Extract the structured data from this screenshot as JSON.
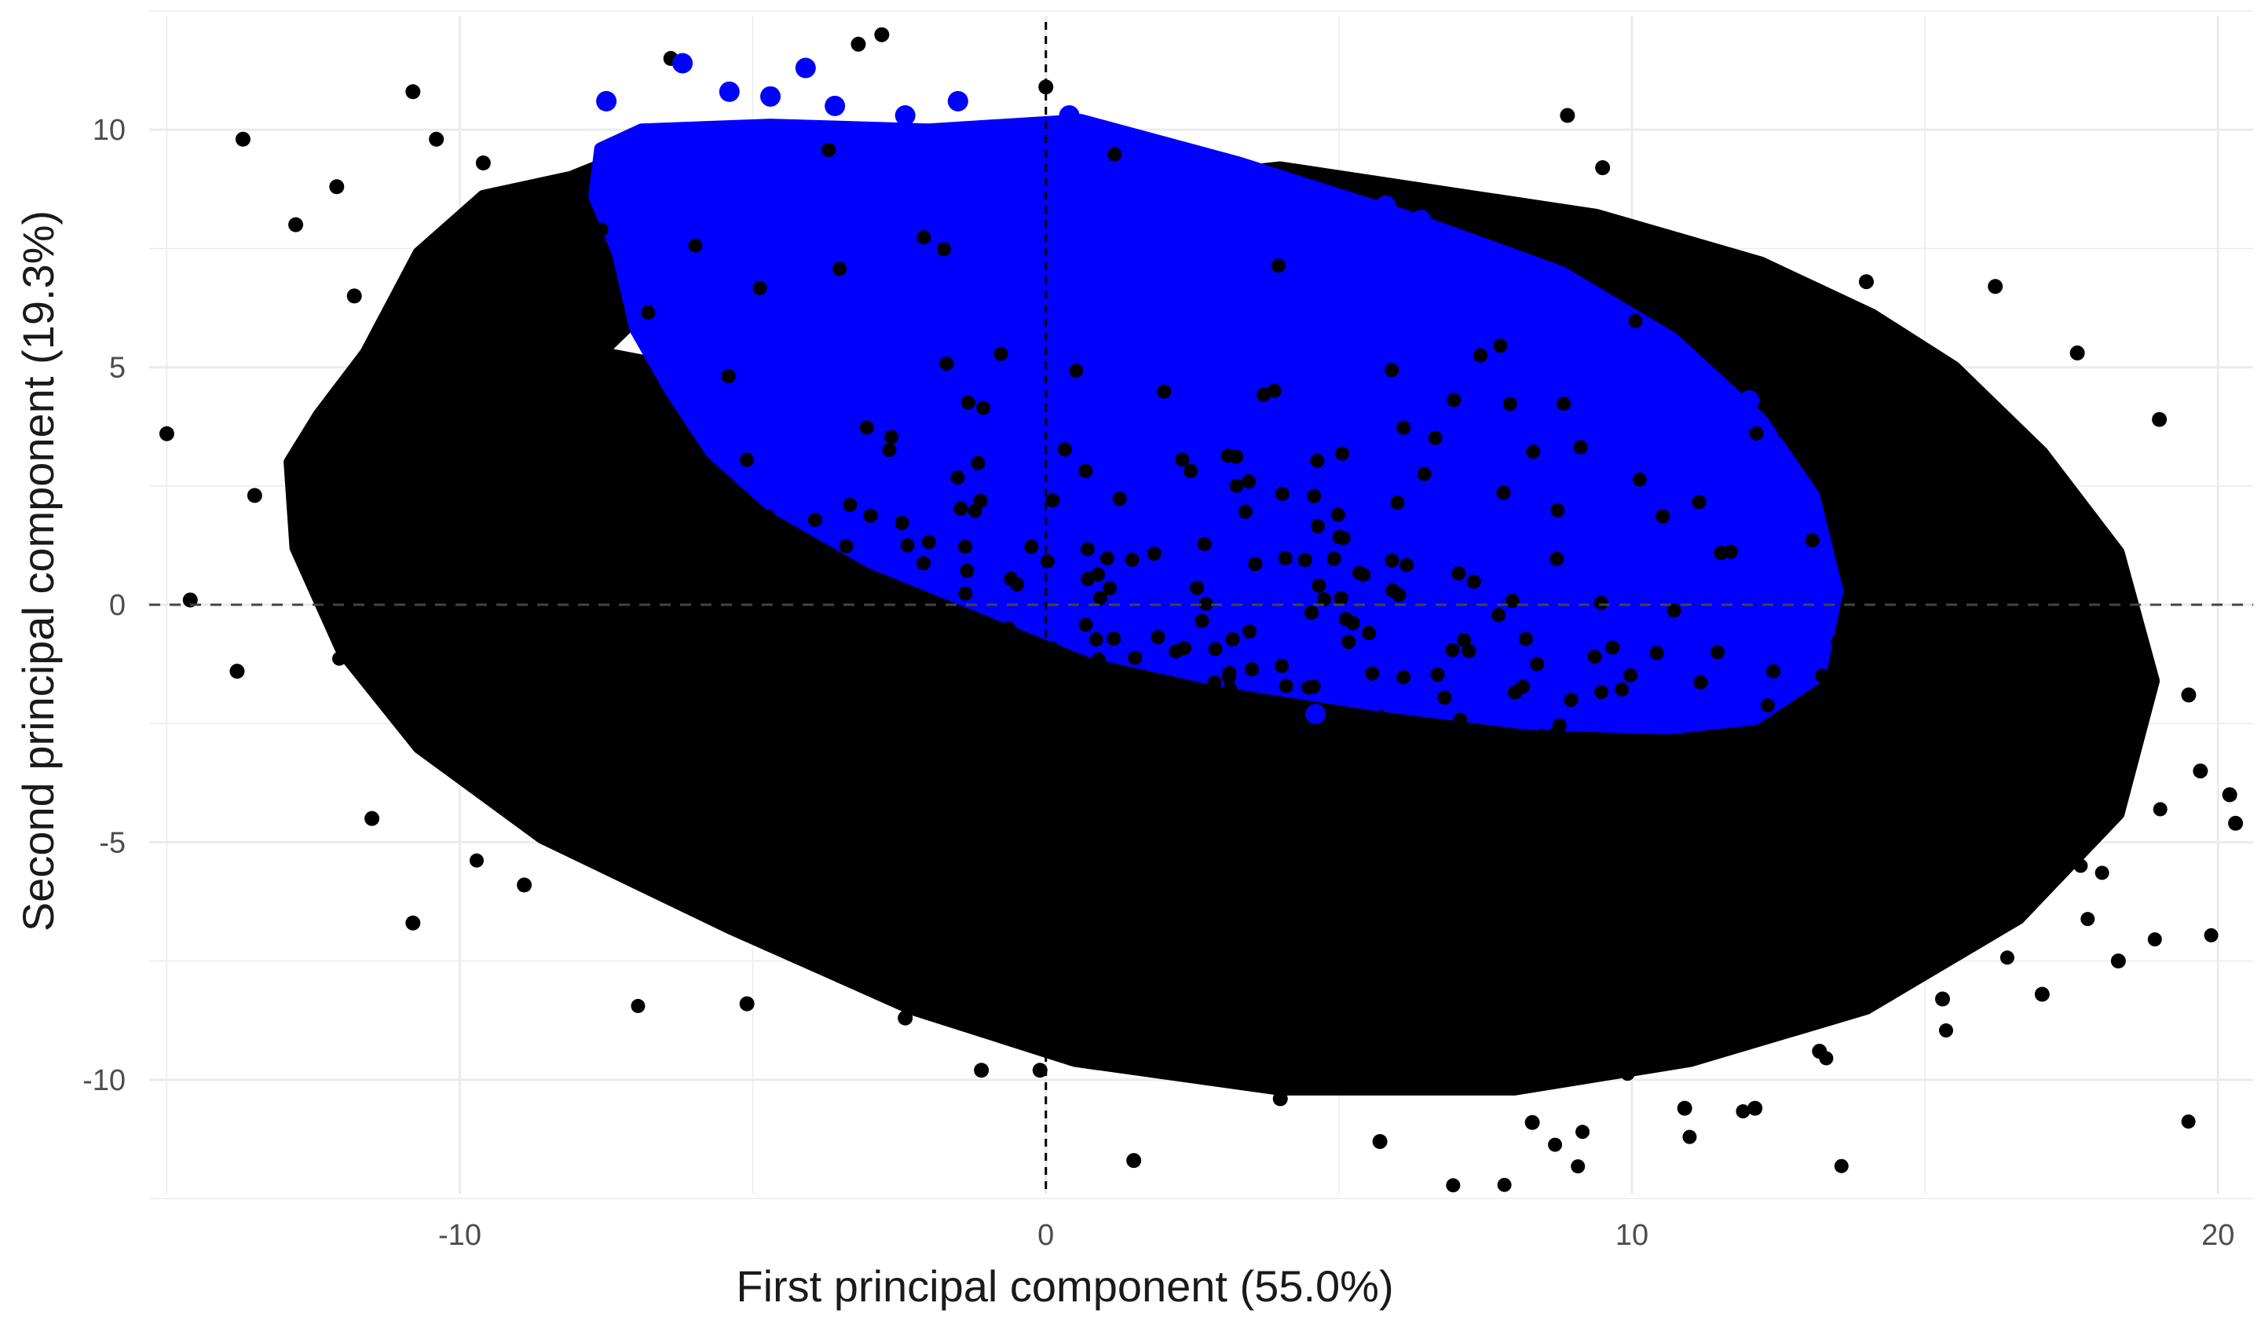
{
  "chart_data": {
    "type": "scatter",
    "title": "",
    "xlabel": "First principal component (55.0%)",
    "ylabel": "Second principal component (19.3%)",
    "xlim": [
      -15.3,
      20.6
    ],
    "ylim": [
      -12.4,
      12.4
    ],
    "x_ticks": [
      -10,
      0,
      10,
      20
    ],
    "y_ticks": [
      -10,
      -5,
      0,
      5,
      10
    ],
    "x_tick_labels": [
      "-10",
      "0",
      "10",
      "20"
    ],
    "y_tick_labels": [
      "-10",
      "-5",
      "0",
      "5",
      "10"
    ],
    "grid": true,
    "legend": "none",
    "reference_lines": {
      "x": 0,
      "y": 0,
      "style": "dashed"
    },
    "colors": {
      "group_a": "#000000",
      "group_b": "#0000ff",
      "grid": "#ebebeb"
    },
    "series": [
      {
        "color": "#000000",
        "cloud_center": [
          4.2,
          -1.5
        ],
        "cloud_spread": [
          6.2,
          3.9
        ],
        "correlation": -0.38,
        "points": [
          [
            -15.0,
            3.6
          ],
          [
            -14.6,
            0.1
          ],
          [
            -13.8,
            -1.4
          ],
          [
            -13.5,
            2.3
          ],
          [
            -13.7,
            9.8
          ],
          [
            -12.8,
            8.0
          ],
          [
            -12.1,
            8.8
          ],
          [
            -11.8,
            6.5
          ],
          [
            -10.8,
            10.8
          ],
          [
            -10.4,
            9.8
          ],
          [
            -10.8,
            -6.7
          ],
          [
            -11.5,
            -4.5
          ],
          [
            -9.6,
            9.3
          ],
          [
            -8.9,
            -5.9
          ],
          [
            -6.4,
            11.5
          ],
          [
            -3.2,
            11.8
          ],
          [
            -2.8,
            12.0
          ],
          [
            -5.1,
            -8.4
          ],
          [
            -2.4,
            -8.7
          ],
          [
            -1.1,
            -9.8
          ],
          [
            0.0,
            10.9
          ],
          [
            -0.1,
            -9.8
          ],
          [
            1.5,
            -11.7
          ],
          [
            4.0,
            -10.4
          ],
          [
            5.7,
            -11.3
          ],
          [
            8.3,
            -10.9
          ],
          [
            8.9,
            10.3
          ],
          [
            12.1,
            -10.6
          ],
          [
            15.3,
            -8.3
          ],
          [
            17.0,
            -8.2
          ],
          [
            18.3,
            -7.5
          ],
          [
            17.6,
            5.3
          ],
          [
            19.0,
            3.9
          ],
          [
            19.7,
            -3.5
          ],
          [
            20.2,
            -4.0
          ],
          [
            20.3,
            -4.6
          ],
          [
            19.5,
            -1.9
          ],
          [
            9.5,
            9.2
          ],
          [
            14.0,
            6.8
          ],
          [
            16.2,
            6.7
          ],
          [
            6.9,
            -10.0
          ],
          [
            10.9,
            -10.6
          ],
          [
            13.2,
            -9.4
          ]
        ]
      },
      {
        "color": "#0000ff",
        "points": [
          [
            -7.5,
            10.6
          ],
          [
            -6.2,
            11.4
          ],
          [
            -5.4,
            10.8
          ],
          [
            -4.7,
            10.7
          ],
          [
            -4.1,
            11.3
          ],
          [
            -3.6,
            10.5
          ],
          [
            -2.4,
            10.3
          ],
          [
            -1.5,
            10.6
          ],
          [
            0.4,
            10.3
          ],
          [
            1.5,
            9.8
          ],
          [
            5.8,
            8.4
          ],
          [
            6.4,
            8.1
          ],
          [
            8.5,
            6.9
          ],
          [
            12.0,
            4.3
          ],
          [
            12.8,
            2.7
          ],
          [
            13.3,
            0.4
          ],
          [
            13.2,
            -0.3
          ],
          [
            4.6,
            -2.3
          ],
          [
            -5.9,
            3.7
          ]
        ]
      }
    ],
    "regions": [
      {
        "color": "#000000",
        "outline": [
          [
            -12.4,
            4.0
          ],
          [
            -11.6,
            5.3
          ],
          [
            -10.7,
            7.4
          ],
          [
            -9.6,
            8.6
          ],
          [
            -8.1,
            9.0
          ],
          [
            -7.3,
            9.4
          ],
          [
            -6.6,
            6.5
          ],
          [
            -7.6,
            5.3
          ],
          [
            -5.9,
            4.9
          ],
          [
            -2.0,
            8.4
          ],
          [
            4.0,
            9.2
          ],
          [
            9.4,
            8.2
          ],
          [
            12.2,
            7.2
          ],
          [
            14.1,
            6.1
          ],
          [
            15.5,
            5.0
          ],
          [
            17.0,
            3.2
          ],
          [
            18.3,
            1.1
          ],
          [
            18.9,
            -1.6
          ],
          [
            18.3,
            -4.4
          ],
          [
            16.6,
            -6.6
          ],
          [
            14.0,
            -8.5
          ],
          [
            11.0,
            -9.6
          ],
          [
            8.0,
            -10.2
          ],
          [
            4.0,
            -10.2
          ],
          [
            0.5,
            -9.6
          ],
          [
            -2.3,
            -8.5
          ],
          [
            -5.4,
            -6.8
          ],
          [
            -8.6,
            -4.9
          ],
          [
            -10.7,
            -3.0
          ],
          [
            -12.0,
            -1.0
          ],
          [
            -12.8,
            1.2
          ],
          [
            -12.9,
            3.0
          ]
        ]
      },
      {
        "color": "#0000ff",
        "outline": [
          [
            -7.6,
            9.6
          ],
          [
            -6.9,
            10.0
          ],
          [
            -4.7,
            10.1
          ],
          [
            -2.0,
            10.0
          ],
          [
            0.6,
            10.2
          ],
          [
            3.3,
            9.3
          ],
          [
            6.1,
            8.2
          ],
          [
            8.8,
            7.0
          ],
          [
            10.7,
            5.6
          ],
          [
            12.2,
            3.9
          ],
          [
            13.1,
            2.3
          ],
          [
            13.5,
            0.3
          ],
          [
            13.2,
            -1.5
          ],
          [
            12.1,
            -2.4
          ],
          [
            10.6,
            -2.6
          ],
          [
            8.2,
            -2.5
          ],
          [
            5.6,
            -2.1
          ],
          [
            3.0,
            -1.6
          ],
          [
            0.8,
            -1.0
          ],
          [
            -1.0,
            -0.1
          ],
          [
            -3.0,
            0.9
          ],
          [
            -4.7,
            2.1
          ],
          [
            -5.7,
            3.2
          ],
          [
            -6.4,
            4.5
          ],
          [
            -7.0,
            5.8
          ],
          [
            -7.3,
            7.4
          ],
          [
            -7.7,
            8.6
          ]
        ]
      }
    ]
  }
}
